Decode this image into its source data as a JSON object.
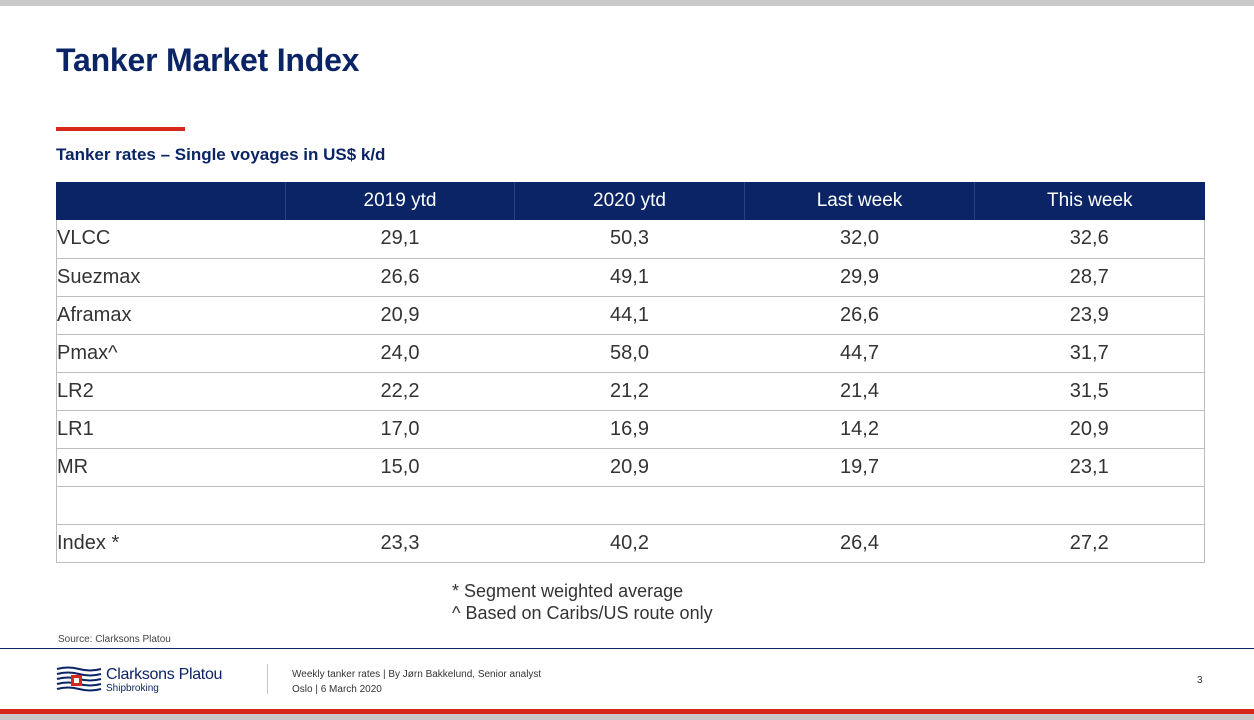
{
  "title": "Tanker Market Index",
  "subtitle": "Tanker rates – Single voyages in US$ k/d",
  "table": {
    "headers": [
      "",
      "2019 ytd",
      "2020 ytd",
      "Last week",
      "This week"
    ],
    "rows": [
      [
        "VLCC",
        "29,1",
        "50,3",
        "32,0",
        "32,6"
      ],
      [
        "Suezmax",
        "26,6",
        "49,1",
        "29,9",
        "28,7"
      ],
      [
        "Aframax",
        "20,9",
        "44,1",
        "26,6",
        "23,9"
      ],
      [
        "Pmax^",
        "24,0",
        "58,0",
        "44,7",
        "31,7"
      ],
      [
        "LR2",
        "22,2",
        "21,2",
        "21,4",
        "31,5"
      ],
      [
        "LR1",
        "17,0",
        "16,9",
        "14,2",
        "20,9"
      ],
      [
        "MR",
        "15,0",
        "20,9",
        "19,7",
        "23,1"
      ],
      [
        "",
        "",
        "",
        "",
        ""
      ],
      [
        "Index *",
        "23,3",
        "40,2",
        "26,4",
        "27,2"
      ]
    ]
  },
  "notes": [
    "* Segment weighted average",
    "^ Based on Caribs/US route only"
  ],
  "source": "Source: Clarksons Platou",
  "footer": {
    "brand": "Clarksons Platou",
    "brand_sub": "Shipbroking",
    "line1": "Weekly tanker rates | By Jørn Bakkelund, Senior analyst",
    "line2": "Oslo | 6 March 2020",
    "page_number": "3"
  },
  "colors": {
    "navy": "#0a2466",
    "red": "#d8281e",
    "gray": "#c9c9c9"
  }
}
